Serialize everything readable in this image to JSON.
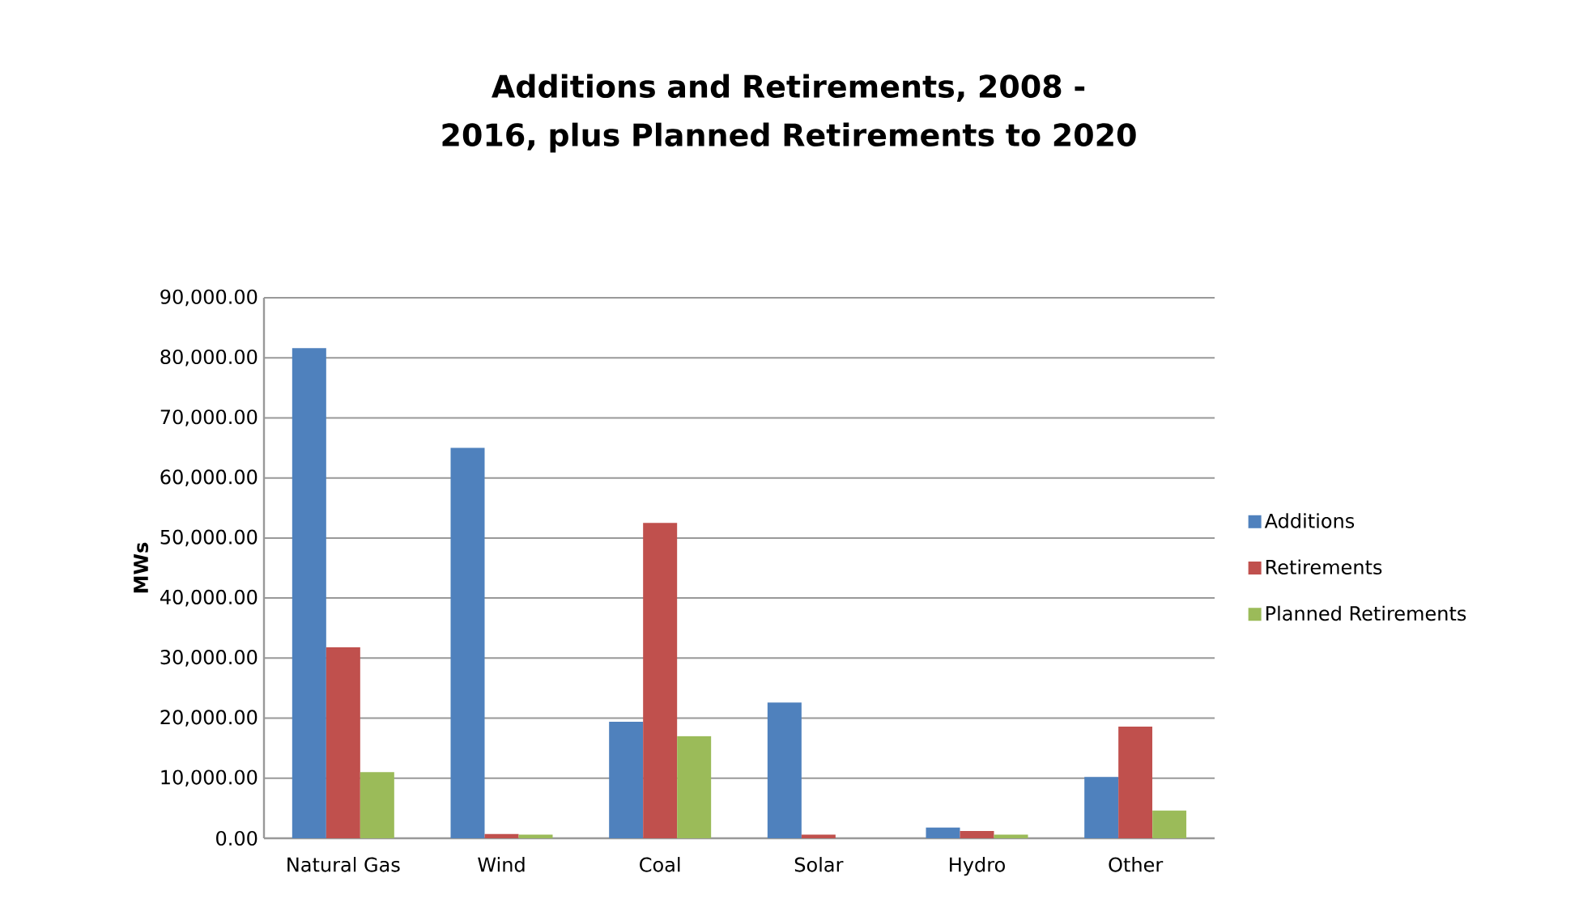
{
  "chart_data": {
    "type": "bar",
    "title": "Additions and Retirements, 2008 - 2016, plus Planned Retirements to 2020",
    "ylabel": "MWs",
    "categories": [
      "Natural  Gas",
      "Wind",
      "Coal",
      "Solar",
      "Hydro",
      "Other"
    ],
    "series": [
      {
        "name": "Additions",
        "color": "#4f81bd",
        "values": [
          81600,
          65000,
          19400,
          22600,
          1800,
          10200
        ]
      },
      {
        "name": "Retirements",
        "color": "#c0504d",
        "values": [
          31800,
          700,
          52500,
          600,
          1200,
          18600
        ]
      },
      {
        "name": "Planned Retirements",
        "color": "#9bbb59",
        "values": [
          11000,
          600,
          17000,
          0,
          600,
          4600
        ]
      }
    ],
    "ylim": [
      0,
      90000
    ],
    "yticks": [
      {
        "value": 0,
        "label": "0.00"
      },
      {
        "value": 10000,
        "label": "10,000.00"
      },
      {
        "value": 20000,
        "label": "20,000.00"
      },
      {
        "value": 30000,
        "label": "30,000.00"
      },
      {
        "value": 40000,
        "label": "40,000.00"
      },
      {
        "value": 50000,
        "label": "50,000.00"
      },
      {
        "value": 60000,
        "label": "60,000.00"
      },
      {
        "value": 70000,
        "label": "70,000.00"
      },
      {
        "value": 80000,
        "label": "80,000.00"
      },
      {
        "value": 90000,
        "label": "90,000.00"
      }
    ],
    "grid": "y",
    "legend": "right"
  }
}
